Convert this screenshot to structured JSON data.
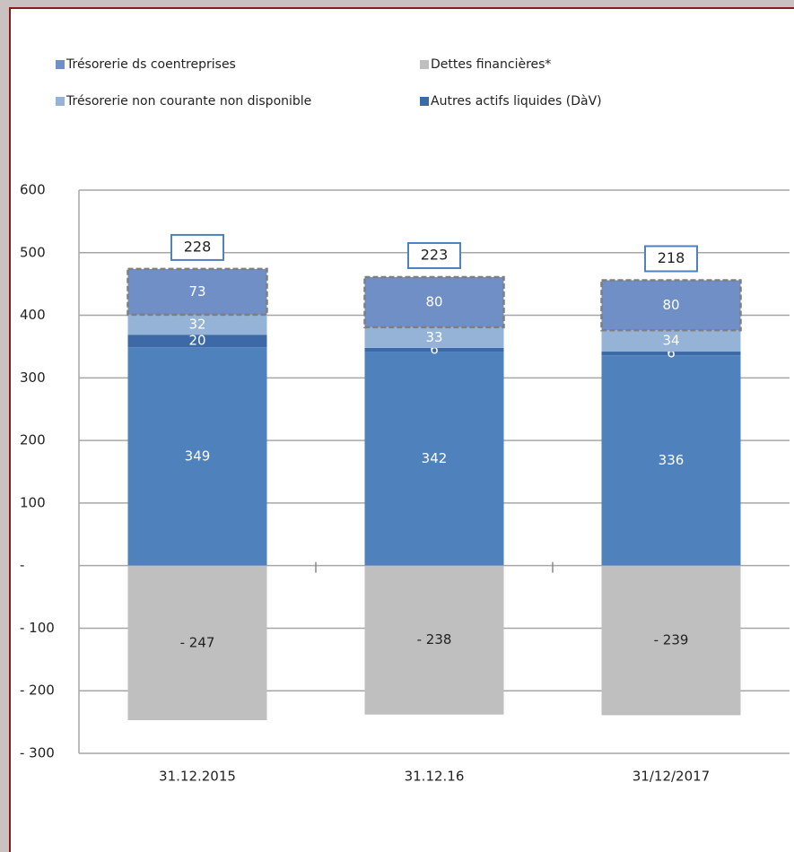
{
  "chart_data": {
    "type": "stacked_bar",
    "categories": [
      "31.12.2015",
      "31.12.16",
      "31/12/2017"
    ],
    "series": [
      {
        "color": "#4f81bd",
        "values": [
          349,
          342,
          336
        ]
      },
      {
        "name": "Autres actifs liquides (DàV)",
        "color": "#3d6aa6",
        "values": [
          20,
          6,
          6
        ]
      },
      {
        "name": "Trésorerie non courante non disponible",
        "color": "#95b3d7",
        "values": [
          32,
          33,
          34
        ]
      },
      {
        "name": "Trésorerie ds coentreprises",
        "color": "#6f8fc6",
        "values": [
          73,
          80,
          80
        ],
        "dashed": true
      },
      {
        "name": "Dettes financières*",
        "color": "#bfbfbf",
        "values": [
          -247,
          -238,
          -239
        ],
        "value_labels": [
          "- 247",
          "- 238",
          "- 239"
        ]
      }
    ],
    "totals": [
      228,
      223,
      218
    ],
    "ylim": [
      -300,
      600
    ],
    "yticks": [
      {
        "value": -300,
        "label": "- 300"
      },
      {
        "value": -200,
        "label": "- 200"
      },
      {
        "value": -100,
        "label": "- 100"
      },
      {
        "value": 0,
        "label": "-"
      },
      100,
      200,
      300,
      400,
      500,
      600
    ],
    "grid": true
  }
}
